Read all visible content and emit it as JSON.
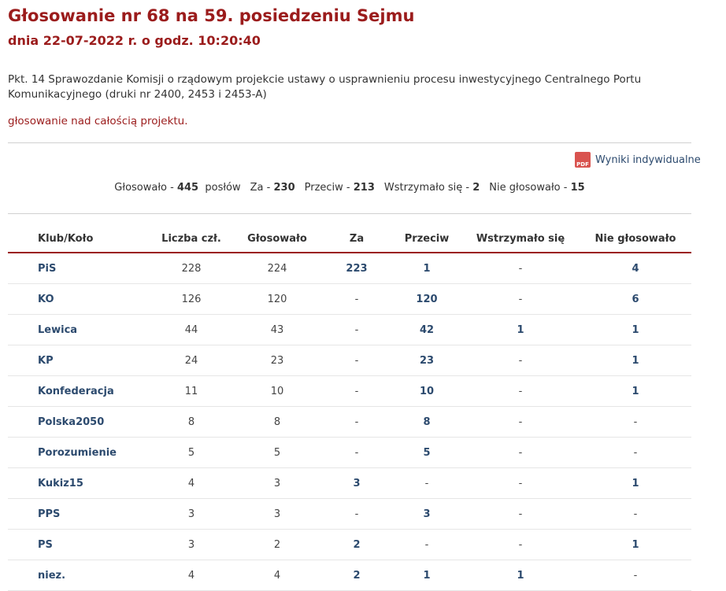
{
  "header": {
    "title": "Głosowanie nr 68 na 59. posiedzeniu Sejmu",
    "subtitle": "dnia 22-07-2022 r. o godz. 10:20:40"
  },
  "description": "Pkt. 14 Sprawozdanie Komisji o rządowym projekcie ustawy o usprawnieniu procesu inwestycyjnego Centralnego Portu Komunikacyjnego (druki nr 2400, 2453 i 2453-A)",
  "vote_subject": "głosowanie nad całością projektu.",
  "pdf_icon": "PDF",
  "individual_results_link": "Wyniki indywidualne",
  "summary": [
    {
      "label": "Głosowało -",
      "value": 445,
      "unit": "posłów"
    },
    {
      "label": "Za -",
      "value": 230
    },
    {
      "label": "Przeciw -",
      "value": 213
    },
    {
      "label": "Wstrzymało się -",
      "value": 2
    },
    {
      "label": "Nie głosowało -",
      "value": 15
    }
  ],
  "table": {
    "columns": [
      "Klub/Koło",
      "Liczba czł.",
      "Głosowało",
      "Za",
      "Przeciw",
      "Wstrzymało się",
      "Nie głosowało"
    ],
    "rows": [
      [
        "PiS",
        228,
        224,
        223,
        1,
        "-",
        4
      ],
      [
        "KO",
        126,
        120,
        "-",
        120,
        "-",
        6
      ],
      [
        "Lewica",
        44,
        43,
        "-",
        42,
        1,
        1
      ],
      [
        "KP",
        24,
        23,
        "-",
        23,
        "-",
        1
      ],
      [
        "Konfederacja",
        11,
        10,
        "-",
        10,
        "-",
        1
      ],
      [
        "Polska2050",
        8,
        8,
        "-",
        8,
        "-",
        "-"
      ],
      [
        "Porozumienie",
        5,
        5,
        "-",
        5,
        "-",
        "-"
      ],
      [
        "Kukiz15",
        4,
        3,
        3,
        "-",
        "-",
        1
      ],
      [
        "PPS",
        3,
        3,
        "-",
        3,
        "-",
        "-"
      ],
      [
        "PS",
        3,
        2,
        2,
        "-",
        "-",
        1
      ],
      [
        "niez.",
        4,
        4,
        2,
        1,
        1,
        "-"
      ]
    ]
  }
}
